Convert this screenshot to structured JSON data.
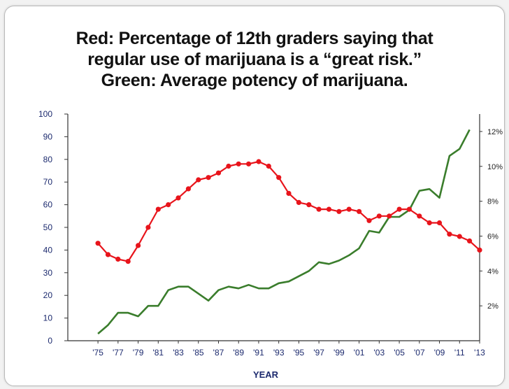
{
  "chart_data": {
    "type": "line",
    "title_lines": [
      "Red: Percentage of 12th graders saying that",
      "regular use of marijuana is a “great risk.”",
      "Green: Average potency of marijuana."
    ],
    "xlabel": "YEAR",
    "x_tick_labels": [
      "'75",
      "'77",
      "'79",
      "'81",
      "'83",
      "'85",
      "'87",
      "'89",
      "'91",
      "'93",
      "'95",
      "'97",
      "'99",
      "'01",
      "'03",
      "'05",
      "'07",
      "'09",
      "'11",
      "'13"
    ],
    "y_left": {
      "ticks": [
        "0",
        "10",
        "20",
        "30",
        "40",
        "50",
        "60",
        "70",
        "80",
        "90",
        "100"
      ],
      "ylim": [
        0,
        100
      ]
    },
    "y_right": {
      "ticks": [
        "2%",
        "4%",
        "6%",
        "8%",
        "10%",
        "12%"
      ],
      "ylim": [
        0,
        13
      ]
    },
    "grid": false,
    "series": [
      {
        "color": "#e8141b",
        "axis": "left",
        "markers": true,
        "x": [
          1975,
          1976,
          1977,
          1978,
          1979,
          1980,
          1981,
          1982,
          1983,
          1984,
          1985,
          1986,
          1987,
          1988,
          1989,
          1990,
          1991,
          1992,
          1993,
          1994,
          1995,
          1996,
          1997,
          1998,
          1999,
          2000,
          2001,
          2002,
          2003,
          2004,
          2005,
          2006,
          2007,
          2008,
          2009,
          2010,
          2011,
          2012,
          2013
        ],
        "values": [
          43,
          38,
          36,
          35,
          42,
          50,
          58,
          60,
          63,
          67,
          71,
          72,
          74,
          77,
          78,
          78,
          79,
          77,
          72,
          65,
          61,
          60,
          58,
          58,
          57,
          58,
          57,
          53,
          55,
          55,
          58,
          58,
          55,
          52,
          52,
          47,
          46,
          44,
          40
        ]
      },
      {
        "color": "#3a7d2c",
        "axis": "right",
        "markers": false,
        "x": [
          1975,
          1976,
          1977,
          1978,
          1979,
          1980,
          1981,
          1982,
          1983,
          1984,
          1985,
          1986,
          1987,
          1988,
          1989,
          1990,
          1991,
          1992,
          1993,
          1994,
          1995,
          1996,
          1997,
          1998,
          1999,
          2000,
          2001,
          2002,
          2003,
          2004,
          2005,
          2006,
          2007,
          2008,
          2009,
          2010,
          2011,
          2012
        ],
        "values": [
          0.4,
          0.9,
          1.6,
          1.6,
          1.4,
          2.0,
          2.0,
          2.9,
          3.1,
          3.1,
          2.7,
          2.3,
          2.9,
          3.1,
          3.0,
          3.2,
          3.0,
          3.0,
          3.3,
          3.4,
          3.7,
          4.0,
          4.5,
          4.4,
          4.6,
          4.9,
          5.3,
          6.3,
          6.2,
          7.1,
          7.1,
          7.5,
          8.6,
          8.7,
          8.2,
          10.6,
          11.0,
          12.1
        ]
      }
    ]
  },
  "colors": {
    "red_series": "#e8141b",
    "green_series": "#3a7d2c",
    "axis": "#1c2a6e"
  }
}
